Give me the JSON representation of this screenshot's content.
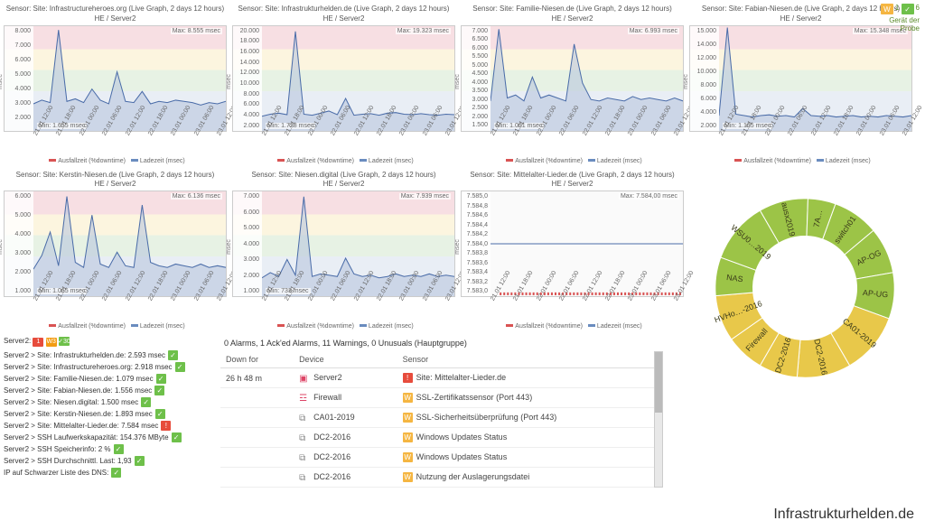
{
  "colors": {
    "line": "#4a6ca8",
    "fill": "#b9c7de",
    "downtime": "#d95353",
    "grid": "#e0e0e0",
    "donut_green": "#9cc447",
    "donut_yellow": "#e8c84a"
  },
  "legend": {
    "a": "Ausfallzeit (%downtime)",
    "b": "Ladezeit (msec)"
  },
  "ylabel": "msec",
  "xticks": [
    "21.01 12:00",
    "21.01 18:00",
    "22.01 00:00",
    "22.01 06:00",
    "22.01 12:00",
    "22.01 18:00",
    "23.01 00:00",
    "23.01 06:00",
    "23.01 12:00"
  ],
  "charts": [
    {
      "title": "Sensor: Site: Infrastructureheroes.org (Live Graph, 2 days 12 hours)",
      "sub": "HE / Server2",
      "yticks": [
        "8.000",
        "7.000",
        "6.000",
        "5.000",
        "4.000",
        "3.000",
        "2.000",
        ""
      ],
      "max": "Max: 8.555 msec",
      "min": "Min: 1.655 msec",
      "series": [
        2200,
        2500,
        2300,
        8200,
        2400,
        2600,
        2300,
        3400,
        2500,
        2200,
        4800,
        2400,
        2300,
        3200,
        2200,
        2400,
        2300,
        2500,
        2400,
        2300,
        2100,
        2300,
        2200,
        2400
      ],
      "ymax": 8500
    },
    {
      "title": "Sensor: Site: Infrastrukturhelden.de (Live Graph, 2 days 12 hours)",
      "sub": "HE / Server2",
      "yticks": [
        "20.000",
        "18.000",
        "16.000",
        "14.000",
        "12.000",
        "10.000",
        "8.000",
        "6.000",
        "4.000",
        "2.000"
      ],
      "max": "Max: 19.323 msec",
      "min": "Min: 1.728 msec",
      "series": [
        2800,
        3200,
        3400,
        3100,
        19000,
        3200,
        3000,
        3400,
        3800,
        3100,
        6200,
        3000,
        3200,
        3300,
        3000,
        3400,
        3500,
        3200,
        3100,
        3300,
        3100,
        3000,
        3200,
        3100
      ],
      "ymax": 20000
    },
    {
      "title": "Sensor: Site: Familie-Niesen.de (Live Graph, 2 days 12 hours)",
      "sub": "HE / Server2",
      "yticks": [
        "7.000",
        "6.500",
        "6.000",
        "5.500",
        "5.000",
        "4.500",
        "4.000",
        "3.500",
        "3.000",
        "2.500",
        "2.000",
        "1.500"
      ],
      "max": "Max: 6.993 msec",
      "min": "Min: 1.001 msec",
      "series": [
        2000,
        6800,
        2200,
        2400,
        2000,
        3600,
        2200,
        2400,
        2200,
        2000,
        5800,
        3200,
        2100,
        2000,
        2200,
        2100,
        2000,
        2300,
        2100,
        2200,
        2100,
        2000,
        2200,
        2000
      ],
      "ymax": 7000
    },
    {
      "title": "Sensor: Site: Fabian-Niesen.de (Live Graph, 2 days 12 hours)",
      "sub": "HE / Server2",
      "yticks": [
        "15.000",
        "14.000",
        "12.000",
        "10.000",
        "8.000",
        "6.000",
        "4.000",
        "2.000"
      ],
      "max": "Max: 15.348 msec",
      "min": "Min: 1.105 msec",
      "series": [
        2200,
        14800,
        2400,
        2200,
        2000,
        2200,
        2300,
        2100,
        2200,
        2000,
        3200,
        2200,
        2100,
        2200,
        2000,
        2100,
        2200,
        2000,
        2100,
        2000,
        2200,
        2100,
        2000,
        2200
      ],
      "ymax": 15000
    },
    {
      "title": "Sensor: Site: Kerstin-Niesen.de (Live Graph, 2 days 12 hours)",
      "sub": "HE / Server2",
      "yticks": [
        "6.000",
        "5.000",
        "4.000",
        "3.000",
        "2.000",
        "1.000"
      ],
      "max": "Max: 6.136 msec",
      "min": "Min: 1.065 msec",
      "series": [
        1600,
        2400,
        3800,
        1800,
        5900,
        2000,
        1700,
        4800,
        1900,
        1700,
        2600,
        1800,
        1700,
        5400,
        2000,
        1800,
        1700,
        1900,
        1800,
        1700,
        1900,
        1700,
        1800,
        1700
      ],
      "ymax": 6200
    },
    {
      "title": "Sensor: Site: Niesen.digital (Live Graph, 2 days 12 hours)",
      "sub": "HE / Server2",
      "yticks": [
        "7.000",
        "6.000",
        "5.000",
        "4.000",
        "3.000",
        "2.000",
        "1.000"
      ],
      "max": "Max: 7.939 msec",
      "min": "Min: 733 msec",
      "series": [
        1400,
        1800,
        1500,
        2800,
        1600,
        7600,
        1500,
        1700,
        1600,
        1500,
        2900,
        1700,
        1500,
        1600,
        1400,
        1500,
        1700,
        1500,
        1600,
        1500,
        1700,
        1500,
        1600,
        1500
      ],
      "ymax": 8000
    },
    {
      "title": "Sensor: Site: Mittelalter-Lieder.de (Live Graph, 2 days 12 hours)",
      "sub": "HE / Server2",
      "yticks": [
        "7.585,0",
        "7.584,8",
        "7.584,6",
        "7.584,4",
        "7.584,2",
        "7.584,0",
        "7.583,8",
        "7.583,6",
        "7.583,4",
        "7.583,2",
        "7.583,0"
      ],
      "max": "Max: 7.584,00 msec",
      "min": "",
      "flat": true,
      "series": [
        7584,
        7584,
        7584,
        7584,
        7584,
        7584,
        7584,
        7584,
        7584,
        7584,
        7584,
        7584,
        7584,
        7584,
        7584,
        7584,
        7584,
        7584,
        7584,
        7584,
        7584,
        7584,
        7584,
        7584
      ],
      "ymax": 7585,
      "ymin": 7583
    }
  ],
  "server_summary": {
    "label": "Server2:",
    "red": "1",
    "orange": "3",
    "green": "30"
  },
  "sensor_items": [
    {
      "t": "Server2 > Site: Infrastrukturhelden.de: 2.593 msec",
      "s": "ok"
    },
    {
      "t": "Server2 > Site: Infrastructureheroes.org: 2.918 msec",
      "s": "ok"
    },
    {
      "t": "Server2 > Site: Familie-Niesen.de: 1.079 msec",
      "s": "ok"
    },
    {
      "t": "Server2 > Site: Fabian-Niesen.de: 1.556 msec",
      "s": "ok"
    },
    {
      "t": "Server2 > Site: Niesen.digital: 1.500 msec",
      "s": "ok"
    },
    {
      "t": "Server2 > Site: Kerstin-Niesen.de: 1.893 msec",
      "s": "ok"
    },
    {
      "t": "Server2 > Site: Mittelalter-Lieder.de: 7.584 msec",
      "s": "alarm"
    },
    {
      "t": "Server2 > SSH Laufwerkskapazität: 154.376 MByte",
      "s": "ok"
    },
    {
      "t": "Server2 > SSH Speicherinfo: 2 %",
      "s": "ok"
    },
    {
      "t": "Server2 > SSH Durchschnittl. Last: 1,93",
      "s": "ok"
    },
    {
      "t": "IP auf Schwarzer Liste des DNS:",
      "s": "ok"
    }
  ],
  "alarm_caption": "0 Alarms, 1 Ack'ed Alarms, 11 Warnings, 0 Unusuals (Hauptgruppe)",
  "alarm_cols": {
    "c1": "Down for",
    "c2": "Device",
    "c3": "Sensor"
  },
  "alarm_rows": [
    {
      "d": "26 h 48 m",
      "dev": "Server2",
      "devico": "srv",
      "sen": "Site: Mittelalter-Lieder.de",
      "st": "alarm"
    },
    {
      "d": "",
      "dev": "Firewall",
      "devico": "fw",
      "sen": "SSL-Zertifikatssensor (Port 443)",
      "st": "warn"
    },
    {
      "d": "",
      "dev": "CA01-2019",
      "devico": "gen",
      "sen": "SSL-Sicherheitsüberprüfung (Port 443)",
      "st": "warn"
    },
    {
      "d": "",
      "dev": "DC2-2016",
      "devico": "gen",
      "sen": "Windows Updates Status",
      "st": "warn"
    },
    {
      "d": "",
      "dev": "DC2-2016",
      "devico": "gen",
      "sen": "Windows Updates Status",
      "st": "warn"
    },
    {
      "d": "",
      "dev": "DC2-2016",
      "devico": "gen",
      "sen": "Nutzung der Auslagerungsdatei",
      "st": "warn"
    }
  ],
  "topright": {
    "w": "1",
    "g": "6",
    "txt": "Gerät der Probe"
  },
  "donut": {
    "segments": [
      {
        "label": "switch01",
        "color": "g",
        "a0": -70,
        "a1": -40
      },
      {
        "label": "AP-OG",
        "color": "g",
        "a0": -40,
        "a1": -10
      },
      {
        "label": "AP-UG",
        "color": "g",
        "a0": -10,
        "a1": 20
      },
      {
        "label": "CA01-2019",
        "color": "y",
        "a0": 20,
        "a1": 60
      },
      {
        "label": "DC2-2016",
        "color": "y",
        "a0": 60,
        "a1": 95
      },
      {
        "label": "DC2-2016",
        "color": "y",
        "a0": 95,
        "a1": 120
      },
      {
        "label": "Firewall",
        "color": "y",
        "a0": 120,
        "a1": 145
      },
      {
        "label": "HVHo…-2016",
        "color": "y",
        "a0": 145,
        "a1": 175
      },
      {
        "label": "NAS",
        "color": "g",
        "a0": 175,
        "a1": 200
      },
      {
        "label": "WSU0…2019",
        "color": "g",
        "a0": 200,
        "a1": 240
      },
      {
        "label": "ausx2019",
        "color": "g",
        "a0": 240,
        "a1": 272
      },
      {
        "label": "7A…",
        "color": "g",
        "a0": 272,
        "a1": 290
      }
    ]
  },
  "brand": "Infrastrukturhelden.de"
}
